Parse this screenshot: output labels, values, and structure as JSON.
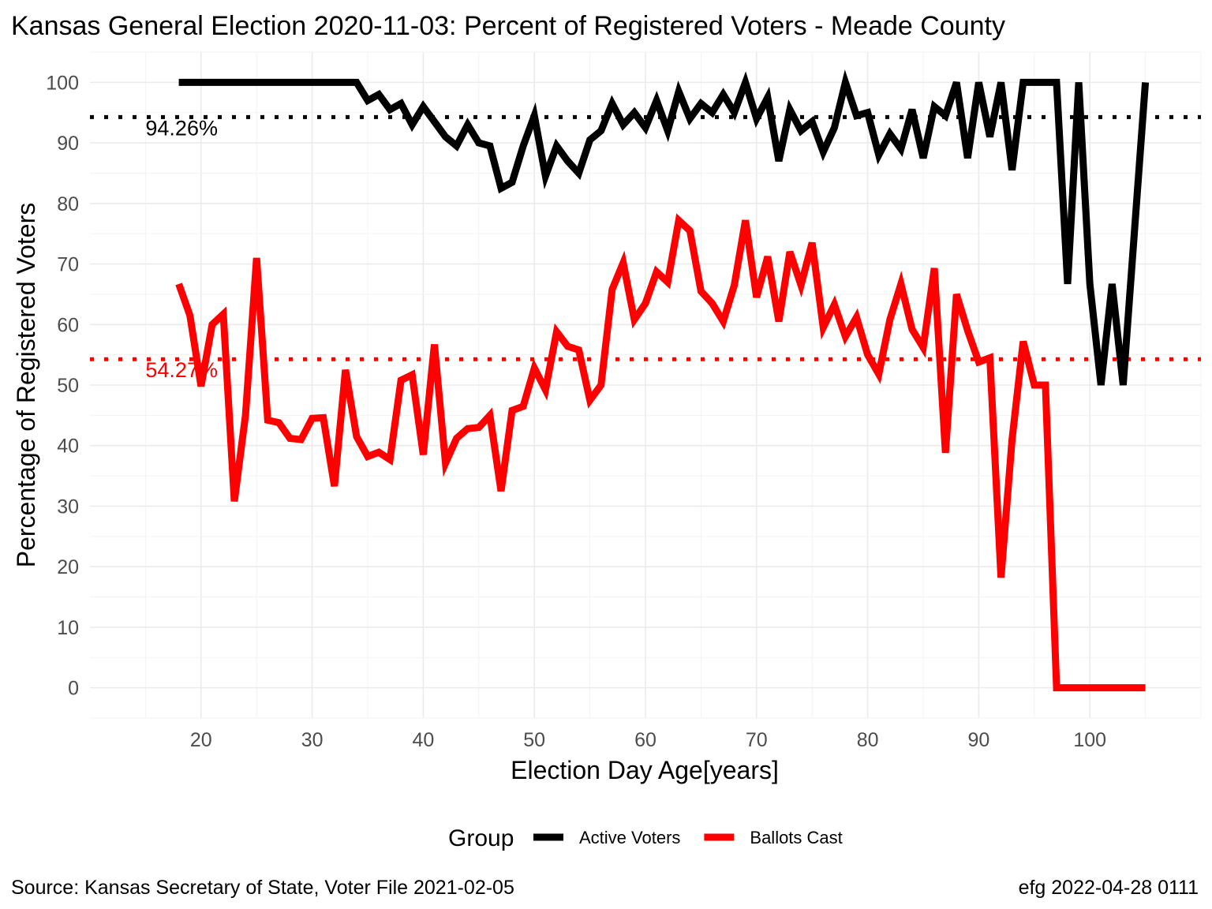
{
  "chart_data": {
    "type": "line",
    "title": "Kansas General Election 2020-11-03:  Percent of Registered Voters - Meade County",
    "xlabel": "Election Day Age[years]",
    "ylabel": "Percentage of Registered Voters",
    "xlim": [
      10,
      110
    ],
    "ylim": [
      -5,
      105
    ],
    "x_ticks": [
      20,
      30,
      40,
      50,
      60,
      70,
      80,
      90,
      100
    ],
    "y_ticks": [
      0,
      10,
      20,
      30,
      40,
      50,
      60,
      70,
      80,
      90,
      100
    ],
    "grid": true,
    "legend": {
      "title": "Group",
      "position": "bottom"
    },
    "series": [
      {
        "name": "Active Voters",
        "color": "#000000",
        "x": [
          18,
          19,
          20,
          21,
          22,
          23,
          24,
          25,
          26,
          27,
          28,
          29,
          30,
          31,
          32,
          33,
          34,
          35,
          36,
          37,
          38,
          39,
          40,
          41,
          42,
          43,
          44,
          45,
          46,
          47,
          48,
          49,
          50,
          51,
          52,
          53,
          54,
          55,
          56,
          57,
          58,
          59,
          60,
          61,
          62,
          63,
          64,
          65,
          66,
          67,
          68,
          69,
          70,
          71,
          72,
          73,
          74,
          75,
          76,
          77,
          78,
          79,
          80,
          81,
          82,
          83,
          84,
          85,
          86,
          87,
          88,
          89,
          90,
          91,
          92,
          93,
          94,
          95,
          96,
          97,
          98,
          99,
          100,
          101,
          102,
          103,
          104,
          105
        ],
        "values": [
          100,
          100,
          100,
          100,
          100,
          100,
          100,
          100,
          100,
          100,
          100,
          100,
          100,
          100,
          100,
          100,
          100,
          97,
          98,
          95.5,
          96.5,
          93,
          96,
          93.5,
          91,
          89.5,
          93,
          90,
          89.5,
          82.5,
          83.5,
          89.5,
          94.5,
          84.5,
          89.5,
          87,
          85,
          90.5,
          92,
          96.5,
          93,
          95,
          92.5,
          97,
          92,
          98.5,
          94,
          96.5,
          95,
          98,
          95,
          100,
          94,
          97.5,
          87,
          95.5,
          92,
          93.5,
          88.5,
          92.5,
          100,
          94.5,
          95,
          88,
          91.5,
          89,
          95.5,
          87.5,
          96,
          94.5,
          100,
          87.5,
          100,
          91,
          100,
          85.5,
          100,
          100,
          100,
          100,
          66.7,
          100,
          66.7,
          50,
          66.7,
          50,
          75,
          100
        ]
      },
      {
        "name": "Ballots Cast",
        "color": "#ff0000",
        "x": [
          18,
          19,
          20,
          21,
          22,
          23,
          24,
          25,
          26,
          27,
          28,
          29,
          30,
          31,
          32,
          33,
          34,
          35,
          36,
          37,
          38,
          39,
          40,
          41,
          42,
          43,
          44,
          45,
          46,
          47,
          48,
          49,
          50,
          51,
          52,
          53,
          54,
          55,
          56,
          57,
          58,
          59,
          60,
          61,
          62,
          63,
          64,
          65,
          66,
          67,
          68,
          69,
          70,
          71,
          72,
          73,
          74,
          75,
          76,
          77,
          78,
          79,
          80,
          81,
          82,
          83,
          84,
          85,
          86,
          87,
          88,
          89,
          90,
          91,
          92,
          93,
          94,
          95,
          96,
          97,
          98,
          99,
          100,
          101,
          102,
          103,
          104,
          105
        ],
        "values": [
          66.7,
          61.5,
          49.8,
          60,
          61.7,
          30.8,
          45,
          71,
          44.2,
          43.8,
          41.2,
          41,
          44.5,
          44.6,
          33.3,
          52.5,
          41.5,
          38.2,
          38.9,
          37.7,
          50.8,
          51.7,
          38.5,
          56.7,
          37.1,
          41.2,
          42.8,
          43,
          45,
          32.5,
          45.8,
          46.5,
          52.8,
          49.2,
          58.8,
          56.4,
          55.8,
          47.5,
          50,
          65.8,
          70.2,
          60.8,
          63.5,
          68.7,
          67,
          77.2,
          75.5,
          65.5,
          63.5,
          60.5,
          66.5,
          77.2,
          64.5,
          71.2,
          60.5,
          72,
          66.5,
          73.5,
          59.5,
          63.3,
          58,
          61.2,
          55,
          51.8,
          60.8,
          66.7,
          59.2,
          56.2,
          69.3,
          38.8,
          65,
          59,
          53.8,
          54.5,
          18.2,
          41,
          57.2,
          50,
          50,
          0,
          0,
          0,
          0,
          0,
          0,
          0,
          0,
          0
        ]
      }
    ],
    "reference_lines": [
      {
        "value": 94.26,
        "label": "94.26%",
        "color": "#000000"
      },
      {
        "value": 54.27,
        "label": "54.27%",
        "color": "#ff0000"
      }
    ]
  },
  "footer": {
    "source": "Source:  Kansas Secretary of State, Voter File  2021-02-05",
    "credit": "efg 2022-04-28 0111"
  }
}
